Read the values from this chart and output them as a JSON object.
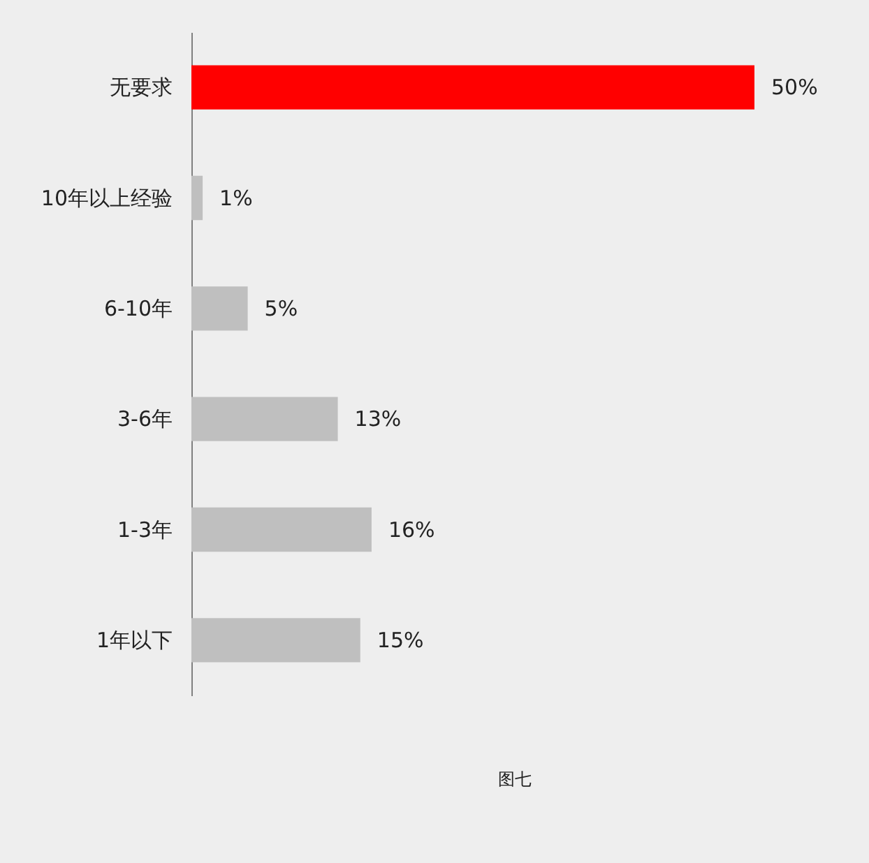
{
  "chart_data": {
    "type": "bar",
    "orientation": "horizontal",
    "categories": [
      "无要求",
      "10年以上经验",
      "6-10年",
      "3-6年",
      "1-3年",
      "1年以下"
    ],
    "values": [
      50,
      1,
      5,
      13,
      16,
      15
    ],
    "colors": [
      "#ff0000",
      "#bfbfbf",
      "#bfbfbf",
      "#bfbfbf",
      "#bfbfbf",
      "#bfbfbf"
    ],
    "value_labels": [
      "50%",
      "1%",
      "5%",
      "13%",
      "16%",
      "15%"
    ],
    "tick_labels": "y",
    "annotations": [
      "图七"
    ]
  }
}
